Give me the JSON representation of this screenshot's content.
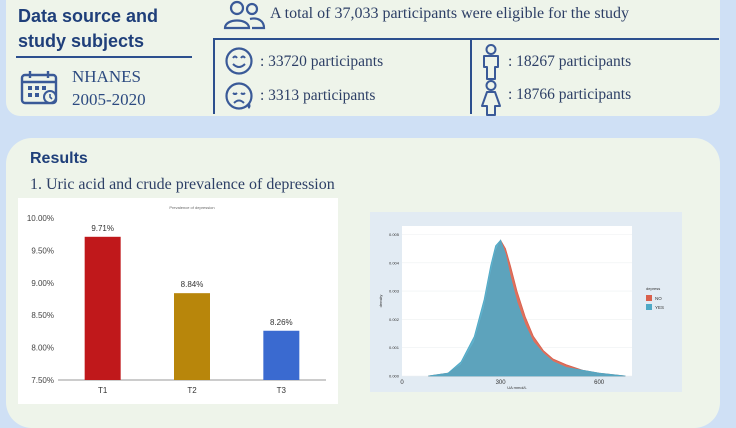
{
  "data_source": {
    "title": "Data source and study subjects",
    "survey_line1": "NHANES",
    "survey_line2": "2005-2020"
  },
  "participants": {
    "total_text": "A total of 37,033 participants were eligible for the study",
    "not_depressed": ": 33720 participants",
    "depressed": ": 3313 participants",
    "male": ": 18267 participants",
    "female": ": 18766 participants"
  },
  "results": {
    "title": "Results",
    "subtitle": "1. Uric acid and crude prevalence of depression"
  },
  "icons": [
    "calendar-icon",
    "people-icon",
    "happy-face-icon",
    "sad-face-icon",
    "male-icon",
    "female-icon"
  ],
  "colors": {
    "accent": "#1f3f7a",
    "panel": "#eef4ea",
    "background": "#cfe0f5"
  },
  "chart_data": [
    {
      "type": "bar",
      "title": "Prevalence of depression",
      "categories": [
        "T1",
        "T2",
        "T3"
      ],
      "values": [
        9.71,
        8.84,
        8.26
      ],
      "value_labels": [
        "9.71%",
        "8.84%",
        "8.26%"
      ],
      "colors": [
        "#c0181b",
        "#b8860b",
        "#3a6ad0"
      ],
      "ylim": [
        7.5,
        10.0
      ],
      "yticks": [
        "7.50%",
        "8.00%",
        "8.50%",
        "9.00%",
        "9.50%",
        "10.00%"
      ],
      "grid": false
    },
    {
      "type": "area",
      "xlabel": "UA mmol/L",
      "ylabel": "density",
      "x_ticks": [
        0,
        300,
        600
      ],
      "y_ticks": [
        "0.000",
        "0.001",
        "0.002",
        "0.003",
        "0.004",
        "0.005"
      ],
      "xlim": [
        0,
        700
      ],
      "ylim": [
        0,
        0.0053
      ],
      "legend_title": "depress",
      "legend_position": "right",
      "series": [
        {
          "name": "NO",
          "color": "#d9604c",
          "points": [
            [
              80,
              0
            ],
            [
              140,
              0.0001
            ],
            [
              180,
              0.0004
            ],
            [
              220,
              0.0012
            ],
            [
              250,
              0.0024
            ],
            [
              270,
              0.0036
            ],
            [
              285,
              0.0044
            ],
            [
              300,
              0.0048
            ],
            [
              315,
              0.0045
            ],
            [
              330,
              0.0039
            ],
            [
              350,
              0.003
            ],
            [
              375,
              0.0021
            ],
            [
              400,
              0.0014
            ],
            [
              430,
              0.0009
            ],
            [
              460,
              0.0006
            ],
            [
              500,
              0.0004
            ],
            [
              550,
              0.0002
            ],
            [
              600,
              0.0001
            ],
            [
              680,
              0
            ]
          ]
        },
        {
          "name": "YES",
          "color": "#4fa9c6",
          "points": [
            [
              80,
              0
            ],
            [
              140,
              0.0001
            ],
            [
              180,
              0.0005
            ],
            [
              220,
              0.0014
            ],
            [
              250,
              0.0027
            ],
            [
              270,
              0.0039
            ],
            [
              285,
              0.0046
            ],
            [
              300,
              0.0048
            ],
            [
              315,
              0.0043
            ],
            [
              330,
              0.0035
            ],
            [
              350,
              0.0026
            ],
            [
              375,
              0.0018
            ],
            [
              400,
              0.0012
            ],
            [
              430,
              0.0008
            ],
            [
              460,
              0.0005
            ],
            [
              500,
              0.0003
            ],
            [
              550,
              0.0002
            ],
            [
              600,
              0.0001
            ],
            [
              680,
              0
            ]
          ]
        }
      ]
    }
  ]
}
